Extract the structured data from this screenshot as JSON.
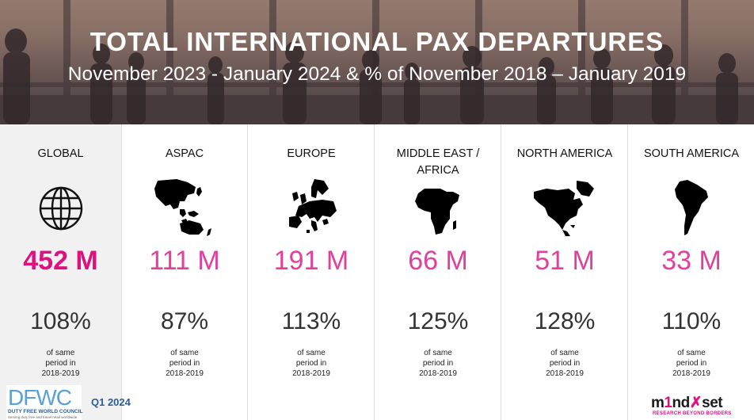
{
  "header": {
    "title": "TOTAL INTERNATIONAL PAX DEPARTURES",
    "subtitle": "November 2023 - January 2024 & % of November 2018 – January 2019"
  },
  "regions": [
    {
      "name": "GLOBAL",
      "icon": "globe-icon",
      "value": "452 M",
      "percent": "108%",
      "note": [
        "of same",
        "period in",
        "2018-2019"
      ]
    },
    {
      "name": "ASPAC",
      "icon": "asia-pacific-map-icon",
      "value": "111 M",
      "percent": "87%",
      "note": [
        "of same",
        "period in",
        "2018-2019"
      ]
    },
    {
      "name": "EUROPE",
      "icon": "europe-map-icon",
      "value": "191 M",
      "percent": "113%",
      "note": [
        "of same",
        "period in",
        "2018-2019"
      ]
    },
    {
      "name_lines": [
        "MIDDLE EAST /",
        "AFRICA"
      ],
      "icon": "africa-map-icon",
      "value": "66 M",
      "percent": "125%",
      "note": [
        "of same",
        "period in",
        "2018-2019"
      ]
    },
    {
      "name": "NORTH AMERICA",
      "icon": "north-america-map-icon",
      "value": "51 M",
      "percent": "128%",
      "note": [
        "of same",
        "period in",
        "2018-2019"
      ]
    },
    {
      "name": "SOUTH AMERICA",
      "icon": "south-america-map-icon",
      "value": "33 M",
      "percent": "110%",
      "note": [
        "of same",
        "period in",
        "2018-2019"
      ]
    }
  ],
  "footer": {
    "dfwc_mark": "DFWC",
    "dfwc_name": "DUTY FREE WORLD COUNCIL",
    "dfwc_tagline": "Serving duty free and travel retail worldwide",
    "quarter": "Q1 2024",
    "mindset_prefix": "m",
    "mindset_accent": "1",
    "mindset_suffix": "nd",
    "mindset_mark": "✗",
    "mindset_end": "set",
    "mindset_tagline": "RESEARCH BEYOND BORDERS"
  },
  "colors": {
    "accent_pink": "#e0117f",
    "value_pink": "#e2409a",
    "global_bg": "#f1f1f1",
    "dfwc_blue": "#2a5d9a"
  }
}
